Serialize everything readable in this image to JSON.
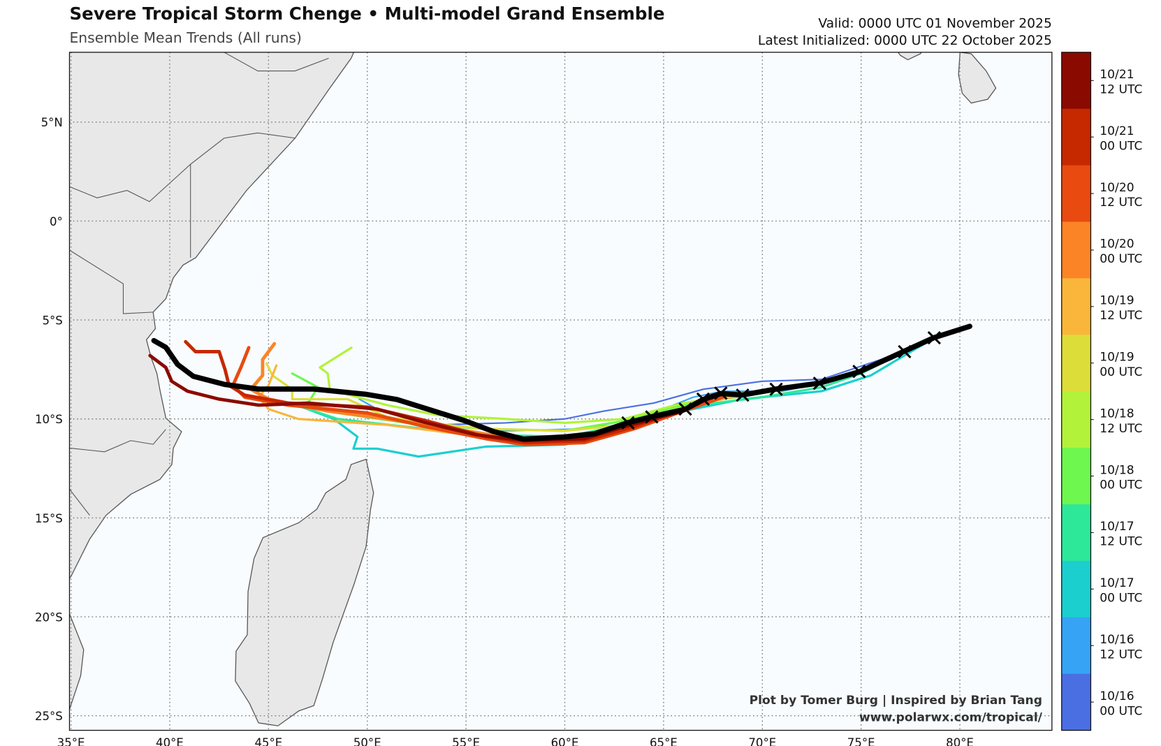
{
  "header": {
    "title": "Severe Tropical Storm Chenge • Multi-model Grand Ensemble",
    "subtitle": "Ensemble Mean Trends (All runs)",
    "valid": "Valid: 0000 UTC 01 November 2025",
    "initialized": "Latest Initialized: 0000 UTC 22 October 2025"
  },
  "credit": {
    "line1": "Plot by Tomer Burg | Inspired by Brian Tang",
    "line2": "www.polarwx.com/tropical/"
  },
  "chart_data": {
    "type": "line",
    "title": "Severe Tropical Storm Chenge • Multi-model Grand Ensemble",
    "xlim": [
      35,
      84.4
    ],
    "ylim": [
      -25.8,
      8.6
    ],
    "grid": true,
    "x_ticks": [
      {
        "v": 35,
        "label": "35°E"
      },
      {
        "v": 40,
        "label": "40°E"
      },
      {
        "v": 45,
        "label": "45°E"
      },
      {
        "v": 50,
        "label": "50°E"
      },
      {
        "v": 55,
        "label": "55°E"
      },
      {
        "v": 60,
        "label": "60°E"
      },
      {
        "v": 65,
        "label": "65°E"
      },
      {
        "v": 70,
        "label": "70°E"
      },
      {
        "v": 75,
        "label": "75°E"
      },
      {
        "v": 80,
        "label": "80°E"
      }
    ],
    "y_ticks": [
      {
        "v": 5,
        "label": "5°N"
      },
      {
        "v": 0,
        "label": "0°"
      },
      {
        "v": -5,
        "label": "5°S"
      },
      {
        "v": -10,
        "label": "10°S"
      },
      {
        "v": -15,
        "label": "15°S"
      },
      {
        "v": -20,
        "label": "20°S"
      },
      {
        "v": -25,
        "label": "25°S"
      }
    ],
    "colorbar": [
      {
        "line1": "10/21",
        "line2": "12 UTC",
        "color": "#8b0a00"
      },
      {
        "line1": "10/21",
        "line2": "00 UTC",
        "color": "#c62800"
      },
      {
        "line1": "10/20",
        "line2": "12 UTC",
        "color": "#e84a10"
      },
      {
        "line1": "10/20",
        "line2": "00 UTC",
        "color": "#fb8427"
      },
      {
        "line1": "10/19",
        "line2": "12 UTC",
        "color": "#f9b63a"
      },
      {
        "line1": "10/19",
        "line2": "00 UTC",
        "color": "#dddd3a"
      },
      {
        "line1": "10/18",
        "line2": "12 UTC",
        "color": "#b2f23a"
      },
      {
        "line1": "10/18",
        "line2": "00 UTC",
        "color": "#6ef74f"
      },
      {
        "line1": "10/17",
        "line2": "12 UTC",
        "color": "#2ee89a"
      },
      {
        "line1": "10/17",
        "line2": "00 UTC",
        "color": "#1ccfcf"
      },
      {
        "line1": "10/16",
        "line2": "12 UTC",
        "color": "#36a3f5"
      },
      {
        "line1": "10/16",
        "line2": "00 UTC",
        "color": "#4a6fe3"
      }
    ],
    "series": [
      {
        "name": "10/16 00 UTC",
        "color": "#4a6fe3",
        "lon": [
          53.5,
          57,
          60,
          62,
          64.5,
          67,
          70,
          73,
          76,
          78.5
        ],
        "lat": [
          -10.3,
          -10.2,
          -10.0,
          -9.6,
          -9.2,
          -8.5,
          -8.1,
          -8.0,
          -7.0,
          -6.0
        ]
      },
      {
        "name": "10/16 12 UTC",
        "color": "#36a3f5",
        "lon": [
          49.6,
          50.5,
          53,
          57,
          61,
          64,
          66.5,
          68,
          71,
          74,
          76.5,
          78.5,
          80.5
        ],
        "lat": [
          -9.0,
          -9.5,
          -10.3,
          -10.6,
          -10.5,
          -9.9,
          -8.9,
          -8.6,
          -8.6,
          -8.0,
          -7.0,
          -5.9,
          -5.3
        ]
      },
      {
        "name": "10/17 00 UTC",
        "color": "#1ccfcf",
        "lon": [
          46.7,
          48.3,
          49.5,
          49.3,
          50.5,
          52.6,
          56,
          60,
          63,
          66,
          69,
          73,
          75.5,
          78.7
        ],
        "lat": [
          -9.4,
          -10.0,
          -10.9,
          -11.5,
          -11.5,
          -11.9,
          -11.4,
          -11.3,
          -10.5,
          -9.6,
          -9.0,
          -8.6,
          -7.8,
          -5.9
        ]
      },
      {
        "name": "10/17 12 UTC",
        "color": "#2ee89a",
        "lon": [
          46.7,
          48.5,
          52,
          56,
          60,
          63,
          66,
          70,
          73,
          75,
          77.2
        ],
        "lat": [
          -9.4,
          -10.0,
          -10.4,
          -10.8,
          -10.9,
          -10.3,
          -9.4,
          -8.9,
          -8.4,
          -7.7,
          -6.6
        ]
      },
      {
        "name": "10/18 00 UTC",
        "color": "#6ef74f",
        "lon": [
          46.2,
          47.5,
          47.0,
          48.5,
          52,
          56,
          60,
          63,
          66,
          70,
          73,
          75,
          77.2
        ],
        "lat": [
          -7.7,
          -8.4,
          -9.2,
          -9.7,
          -10.2,
          -10.5,
          -10.6,
          -10.1,
          -9.3,
          -8.7,
          -8.2,
          -7.5,
          -6.6
        ]
      },
      {
        "name": "10/18 12 UTC",
        "color": "#b2f23a",
        "lon": [
          49.2,
          47.6,
          48.0,
          48.1,
          49.5,
          51,
          53.5,
          57,
          60,
          63,
          66,
          70,
          73,
          74.9
        ],
        "lat": [
          -6.4,
          -7.4,
          -7.7,
          -8.5,
          -8.9,
          -9.3,
          -9.8,
          -10.0,
          -10.2,
          -10.0,
          -9.2,
          -8.6,
          -8.2,
          -7.6
        ]
      },
      {
        "name": "10/19 00 UTC",
        "color": "#dddd3a",
        "lon": [
          44.9,
          45.2,
          46.2,
          46.2,
          49,
          51,
          53,
          56,
          60,
          63,
          66,
          69,
          70.7
        ],
        "lat": [
          -7.2,
          -7.8,
          -8.5,
          -9.0,
          -9.0,
          -9.9,
          -10.2,
          -10.5,
          -10.6,
          -10.3,
          -9.4,
          -8.7,
          -8.5
        ]
      },
      {
        "name": "10/19 12 UTC",
        "color": "#f9b63a",
        "lon": [
          45.4,
          45,
          44.5,
          45,
          46.5,
          51,
          55,
          58,
          61,
          64,
          67,
          69
        ],
        "lat": [
          -7.3,
          -8.3,
          -8.9,
          -9.5,
          -10.0,
          -10.3,
          -10.8,
          -11.2,
          -11.0,
          -10.3,
          -9.2,
          -8.8
        ]
      },
      {
        "name": "10/20 00 UTC",
        "color": "#fb8427",
        "lon": [
          45.3,
          44.7,
          44.7,
          44.1,
          45,
          48,
          51,
          55,
          58,
          61,
          64,
          66.5,
          68
        ],
        "lat": [
          -6.2,
          -7.0,
          -7.8,
          -8.5,
          -9.0,
          -9.6,
          -10.0,
          -10.6,
          -11.1,
          -11.0,
          -10.2,
          -9.3,
          -8.8
        ]
      },
      {
        "name": "10/20 12 UTC",
        "color": "#e84a10",
        "lon": [
          44.0,
          43.6,
          43.2,
          43.8,
          46,
          50,
          53,
          56,
          58,
          61,
          63.5,
          66,
          68
        ],
        "lat": [
          -6.4,
          -7.4,
          -8.3,
          -8.9,
          -9.3,
          -9.7,
          -10.4,
          -11.0,
          -11.3,
          -11.2,
          -10.5,
          -9.6,
          -8.9
        ]
      },
      {
        "name": "10/21 00 UTC",
        "color": "#c62800",
        "lon": [
          40.8,
          41.3,
          42.5,
          42.8,
          43,
          43.8,
          46,
          50,
          53,
          56,
          58,
          61,
          63.5,
          66,
          67.5
        ],
        "lat": [
          -6.1,
          -6.6,
          -6.6,
          -7.5,
          -8.3,
          -8.8,
          -9.2,
          -9.4,
          -10.1,
          -10.9,
          -11.2,
          -11.1,
          -10.4,
          -9.5,
          -8.9
        ]
      },
      {
        "name": "10/21 12 UTC",
        "color": "#8b0a00",
        "lon": [
          39.0,
          39.8,
          40.1,
          40.9,
          42.5,
          44.5,
          47,
          50.5,
          53,
          55.5,
          58,
          61,
          63,
          66,
          67
        ],
        "lat": [
          -6.8,
          -7.4,
          -8.1,
          -8.6,
          -9.0,
          -9.3,
          -9.2,
          -9.5,
          -10.2,
          -10.8,
          -11.1,
          -11.0,
          -10.4,
          -9.6,
          -9.1
        ]
      },
      {
        "name": "10/22 00 UTC (latest)",
        "color": "#000000",
        "lon": [
          80.5,
          78.7,
          77.2,
          74.9,
          72.9,
          70.7,
          69.0,
          67.9,
          67.0,
          66.1,
          64.4,
          63.2,
          61.5,
          60.0,
          57.9,
          56.4,
          54.9,
          53.3,
          51.5,
          49.9,
          47.3,
          44.5,
          42.8,
          41.2,
          40.4,
          39.8,
          39.2
        ],
        "lat": [
          -5.32,
          -5.89,
          -6.57,
          -7.62,
          -8.19,
          -8.49,
          -8.79,
          -8.72,
          -9.02,
          -9.51,
          -9.89,
          -10.19,
          -10.75,
          -10.91,
          -11.02,
          -10.64,
          -10.08,
          -9.58,
          -9.02,
          -8.75,
          -8.49,
          -8.49,
          -8.26,
          -7.85,
          -7.25,
          -6.38,
          -6.04
        ]
      }
    ],
    "init_markers": {
      "lon": [
        78.7,
        77.2,
        74.9,
        72.9,
        70.7,
        69.0,
        67.9,
        67.0,
        66.1,
        64.4,
        63.2
      ],
      "lat": [
        -5.9,
        -6.6,
        -7.6,
        -8.2,
        -8.5,
        -8.8,
        -8.7,
        -9.0,
        -9.5,
        -9.9,
        -10.2
      ]
    }
  }
}
